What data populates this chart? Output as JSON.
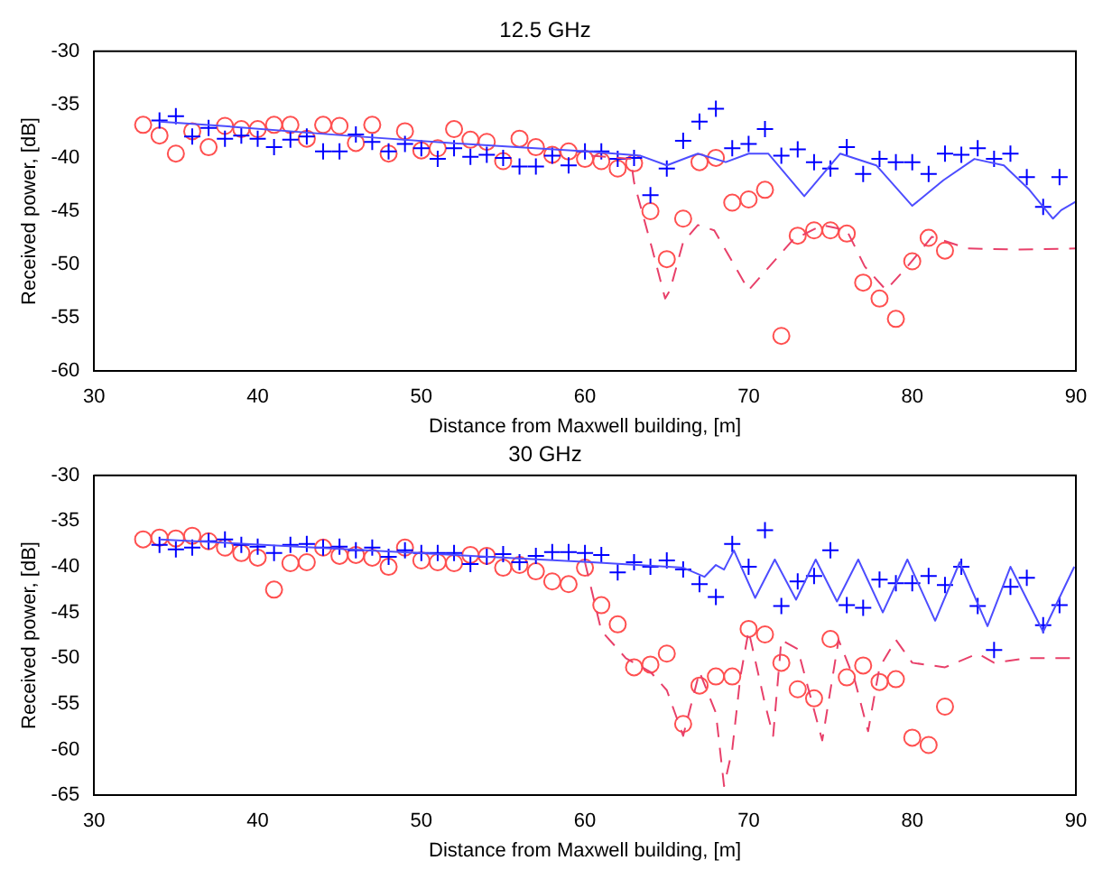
{
  "chart_data": [
    {
      "type": "line",
      "title": "12.5 GHz",
      "xlabel": "Distance from Maxwell building, [m]",
      "ylabel": "Received power, [dB]",
      "xlim": [
        30,
        90
      ],
      "xticks": [
        30,
        40,
        50,
        60,
        70,
        80,
        90
      ],
      "ylim": [
        -60,
        -30
      ],
      "yticks": [
        -60,
        -55,
        -50,
        -45,
        -40,
        -35,
        -30
      ],
      "grid": false,
      "legend": false,
      "series": [
        {
          "type": "line",
          "color": "#4d4dff",
          "marker": "none",
          "line_style": "solid",
          "x": [
            34,
            37.8,
            45.3,
            52.7,
            60.1,
            63.4,
            65,
            66.9,
            68.6,
            70,
            71.2,
            73.4,
            75.6,
            77.8,
            80,
            81.9,
            83.8,
            85.6,
            87.1,
            88.6,
            89.1,
            90
          ],
          "values": [
            -36.6,
            -37,
            -37.9,
            -38.7,
            -39.4,
            -39.8,
            -40.7,
            -39.6,
            -40.4,
            -39.6,
            -39.6,
            -43.6,
            -39.6,
            -40.7,
            -44.5,
            -42.1,
            -40.1,
            -40.7,
            -42.9,
            -45.7,
            -44.9,
            -44.1
          ]
        },
        {
          "type": "line",
          "color": "#e8406a",
          "marker": "none",
          "line_style": "dashed",
          "x": [
            60.4,
            62.8,
            63,
            64.1,
            64.9,
            65.2,
            66,
            66.9,
            67.9,
            70,
            72.7,
            74.5,
            76,
            77.1,
            78.4,
            79.7,
            81.2,
            83.4,
            86.4,
            90
          ],
          "values": [
            -39.8,
            -40.1,
            -42.3,
            -48.5,
            -53.2,
            -52.4,
            -47.9,
            -46.3,
            -46.8,
            -52.4,
            -47.7,
            -46.3,
            -46.8,
            -50.2,
            -52.4,
            -50.2,
            -47.4,
            -48.5,
            -48.6,
            -48.5
          ]
        },
        {
          "type": "scatter",
          "color": "#0000ff",
          "marker": "cross",
          "x": [
            34,
            35,
            36,
            37,
            38,
            39,
            40,
            41,
            42,
            43,
            44,
            45,
            46,
            47,
            48,
            49,
            50,
            51,
            52,
            53,
            54,
            55,
            56,
            57,
            58,
            59,
            60,
            61,
            62,
            63,
            64,
            65,
            66,
            67,
            68,
            69,
            70,
            71,
            72,
            73,
            74,
            75,
            76,
            77,
            78,
            79,
            80,
            81,
            82,
            83,
            84,
            85,
            86,
            87,
            88,
            89
          ],
          "values": [
            -36.5,
            -36.1,
            -38,
            -37.2,
            -38.2,
            -37.9,
            -38.2,
            -39,
            -38.3,
            -38,
            -39.4,
            -39.4,
            -37.8,
            -38.5,
            -39.4,
            -38.7,
            -39.1,
            -40.1,
            -39.1,
            -39.9,
            -39.7,
            -40,
            -40.8,
            -40.8,
            -39.8,
            -40.7,
            -39.4,
            -39.4,
            -40.1,
            -40,
            -43.5,
            -41,
            -38.4,
            -36.6,
            -35.4,
            -39.1,
            -38.7,
            -37.3,
            -39.8,
            -39.2,
            -40.4,
            -41,
            -39,
            -41.5,
            -40.1,
            -40.4,
            -40.4,
            -41.5,
            -39.6,
            -39.7,
            -39.1,
            -40.1,
            -39.6,
            -41.8,
            -44.6,
            -41.8
          ]
        },
        {
          "type": "scatter",
          "color": "#ff5050",
          "marker": "circle",
          "x": [
            33,
            34,
            35,
            36,
            37,
            38,
            39,
            40,
            41,
            42,
            43,
            44,
            45,
            46,
            47,
            48,
            49,
            50,
            51,
            52,
            53,
            54,
            55,
            56,
            57,
            58,
            59,
            60,
            61,
            62,
            63,
            64,
            65,
            66,
            67,
            68,
            69,
            70,
            71,
            72,
            73,
            74,
            75,
            76,
            77,
            78,
            79,
            80,
            81,
            82
          ],
          "values": [
            -36.9,
            -37.9,
            -39.6,
            -37.5,
            -39,
            -37,
            -37.3,
            -37.3,
            -36.9,
            -36.9,
            -38.2,
            -36.9,
            -37,
            -38.6,
            -36.9,
            -39.6,
            -37.5,
            -39.3,
            -39.1,
            -37.3,
            -38.3,
            -38.5,
            -40.3,
            -38.2,
            -39,
            -39.7,
            -39.4,
            -40.1,
            -40.3,
            -41,
            -40.5,
            -45,
            -49.5,
            -45.7,
            -40.4,
            -40,
            -44.2,
            -43.9,
            -43,
            -56.7,
            -47.3,
            -46.8,
            -46.8,
            -47.1,
            -51.7,
            -53.2,
            -55.1,
            -49.7,
            -47.5,
            -48.7
          ]
        }
      ]
    },
    {
      "type": "line",
      "title": "30 GHz",
      "xlabel": "Distance from Maxwell building, [m]",
      "ylabel": "Received power, [dB]",
      "xlim": [
        30,
        90
      ],
      "xticks": [
        30,
        40,
        50,
        60,
        70,
        80,
        90
      ],
      "ylim": [
        -65,
        -30
      ],
      "yticks": [
        -65,
        -60,
        -55,
        -50,
        -45,
        -40,
        -35,
        -30
      ],
      "grid": false,
      "legend": false,
      "series": [
        {
          "type": "line",
          "color": "#4d4dff",
          "marker": "none",
          "line_style": "solid",
          "x": [
            34,
            60.4,
            66,
            67.3,
            68,
            68.5,
            69.1,
            70.4,
            71.6,
            72.9,
            74.1,
            75.4,
            76.7,
            78.2,
            79.7,
            81.4,
            82.9,
            84.6,
            86,
            88,
            89.9
          ],
          "values": [
            -37,
            -39.5,
            -40.1,
            -41.1,
            -39.8,
            -40.3,
            -38.2,
            -43.4,
            -39.2,
            -43.6,
            -39.2,
            -43.8,
            -39.2,
            -45,
            -39.2,
            -45.9,
            -39.5,
            -46.5,
            -40,
            -47.1,
            -40
          ]
        },
        {
          "type": "line",
          "color": "#e8406a",
          "marker": "none",
          "line_style": "dashed",
          "x": [
            60,
            61,
            62.5,
            64,
            65,
            66,
            67,
            68,
            68.5,
            69,
            69.5,
            70,
            71,
            71.5,
            72,
            73,
            74.5,
            75.5,
            76.5,
            77.3,
            78,
            79,
            80,
            82,
            84,
            85,
            87,
            90
          ],
          "values": [
            -39.5,
            -47,
            -50,
            -51.5,
            -53.5,
            -58.5,
            -51.5,
            -56,
            -64,
            -60,
            -52,
            -47,
            -55,
            -58.5,
            -48,
            -49,
            -59,
            -48,
            -52.5,
            -58,
            -51,
            -48,
            -50.5,
            -51,
            -49.5,
            -50.5,
            -50,
            -50
          ]
        },
        {
          "type": "scatter",
          "color": "#0000ff",
          "marker": "cross",
          "x": [
            34,
            35,
            36,
            37,
            38,
            39,
            40,
            41,
            42,
            43,
            44,
            45,
            46,
            47,
            48,
            49,
            50,
            51,
            52,
            53,
            54,
            55,
            56,
            57,
            58,
            59,
            60,
            61,
            62,
            63,
            64,
            65,
            66,
            67,
            68,
            69,
            70,
            71,
            72,
            73,
            74,
            75,
            76,
            77,
            78,
            79,
            80,
            81,
            82,
            83,
            84,
            85,
            86,
            87,
            88,
            89
          ],
          "values": [
            -37.6,
            -38.1,
            -37.9,
            -37.2,
            -37,
            -37.6,
            -37.8,
            -38.5,
            -37.6,
            -37.5,
            -37.9,
            -37.8,
            -38.2,
            -37.9,
            -38.9,
            -38.2,
            -38.5,
            -38.5,
            -38.5,
            -39.7,
            -38.9,
            -38.6,
            -39.5,
            -38.8,
            -38.4,
            -38.4,
            -38.5,
            -38.7,
            -40.6,
            -39.5,
            -40,
            -39.3,
            -40.3,
            -41.9,
            -43.3,
            -37.5,
            -40,
            -36,
            -44.3,
            -41.6,
            -41,
            -38.2,
            -44.2,
            -44.5,
            -41.4,
            -41.8,
            -41.8,
            -41,
            -42,
            -40,
            -44.3,
            -49.1,
            -42.2,
            -41.2,
            -46.4,
            -44.2
          ]
        },
        {
          "type": "scatter",
          "color": "#ff5050",
          "marker": "circle",
          "x": [
            33,
            34,
            35,
            36,
            37,
            38,
            39,
            40,
            41,
            42,
            43,
            44,
            45,
            46,
            47,
            48,
            49,
            50,
            51,
            52,
            53,
            54,
            55,
            56,
            57,
            58,
            59,
            60,
            61,
            62,
            63,
            64,
            65,
            66,
            67,
            68,
            69,
            70,
            71,
            72,
            73,
            74,
            75,
            76,
            77,
            78,
            79,
            80,
            81,
            82
          ],
          "values": [
            -37,
            -36.8,
            -36.9,
            -36.6,
            -37.2,
            -37.9,
            -38.5,
            -39,
            -42.5,
            -39.6,
            -39.5,
            -37.9,
            -38.8,
            -38.7,
            -39,
            -40,
            -37.9,
            -39.3,
            -39.5,
            -39.6,
            -38.7,
            -38.8,
            -40.1,
            -39.8,
            -40.5,
            -41.6,
            -41.9,
            -40.1,
            -44.2,
            -46.3,
            -51,
            -50.7,
            -49.5,
            -57.2,
            -53,
            -52,
            -52,
            -46.8,
            -47.4,
            -50.5,
            -53.4,
            -54.4,
            -47.9,
            -52.1,
            -50.8,
            -52.6,
            -52.3,
            -58.7,
            -59.5,
            -55.3
          ]
        }
      ]
    }
  ]
}
